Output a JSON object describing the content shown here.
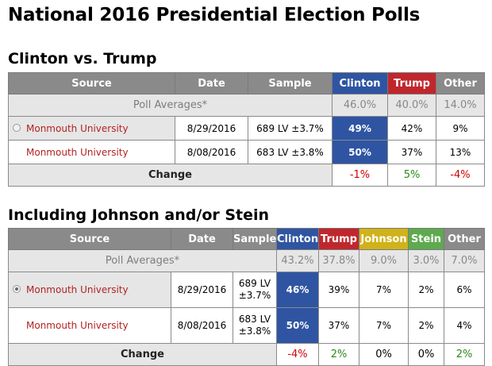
{
  "page_title": "National 2016 Presidential Election Polls",
  "section1": {
    "title": "Clinton vs. Trump",
    "headers": [
      "Source",
      "Date",
      "Sample",
      "Clinton",
      "Trump",
      "Other"
    ],
    "averages": {
      "label": "Poll Averages*",
      "clinton": "46.0%",
      "trump": "40.0%",
      "other": "14.0%"
    },
    "polls": [
      {
        "source": "Monmouth University",
        "date": "8/29/2016",
        "sample": "689 LV ±3.7%",
        "clinton": "49%",
        "trump": "42%",
        "other": "9%"
      },
      {
        "source": "Monmouth University",
        "date": "8/08/2016",
        "sample": "683 LV ±3.8%",
        "clinton": "50%",
        "trump": "37%",
        "other": "13%"
      }
    ],
    "change": {
      "label": "Change",
      "clinton": "-1%",
      "trump": "5%",
      "other": "-4%"
    }
  },
  "section2": {
    "title": "Including Johnson and/or Stein",
    "headers": [
      "Source",
      "Date",
      "Sample",
      "Clinton",
      "Trump",
      "Johnson",
      "Stein",
      "Other"
    ],
    "averages": {
      "label": "Poll Averages*",
      "clinton": "43.2%",
      "trump": "37.8%",
      "johnson": "9.0%",
      "stein": "3.0%",
      "other": "7.0%"
    },
    "polls": [
      {
        "source": "Monmouth University",
        "date": "8/29/2016",
        "sample_line1": "689 LV",
        "sample_line2": "±3.7%",
        "clinton": "46%",
        "trump": "39%",
        "johnson": "7%",
        "stein": "2%",
        "other": "6%"
      },
      {
        "source": "Monmouth University",
        "date": "8/08/2016",
        "sample_line1": "683 LV",
        "sample_line2": "±3.8%",
        "clinton": "50%",
        "trump": "37%",
        "johnson": "7%",
        "stein": "2%",
        "other": "4%"
      }
    ],
    "change": {
      "label": "Change",
      "clinton": "-4%",
      "trump": "2%",
      "johnson": "0%",
      "stein": "0%",
      "other": "2%"
    }
  },
  "colors": {
    "clinton": "#2f55a2",
    "trump": "#c0272d",
    "johnson": "#d0b21a",
    "stein": "#5eaa4f",
    "header": "#8a8a8a",
    "source_link": "#b22222",
    "negative": "#d00000",
    "positive": "#2a8a17"
  }
}
